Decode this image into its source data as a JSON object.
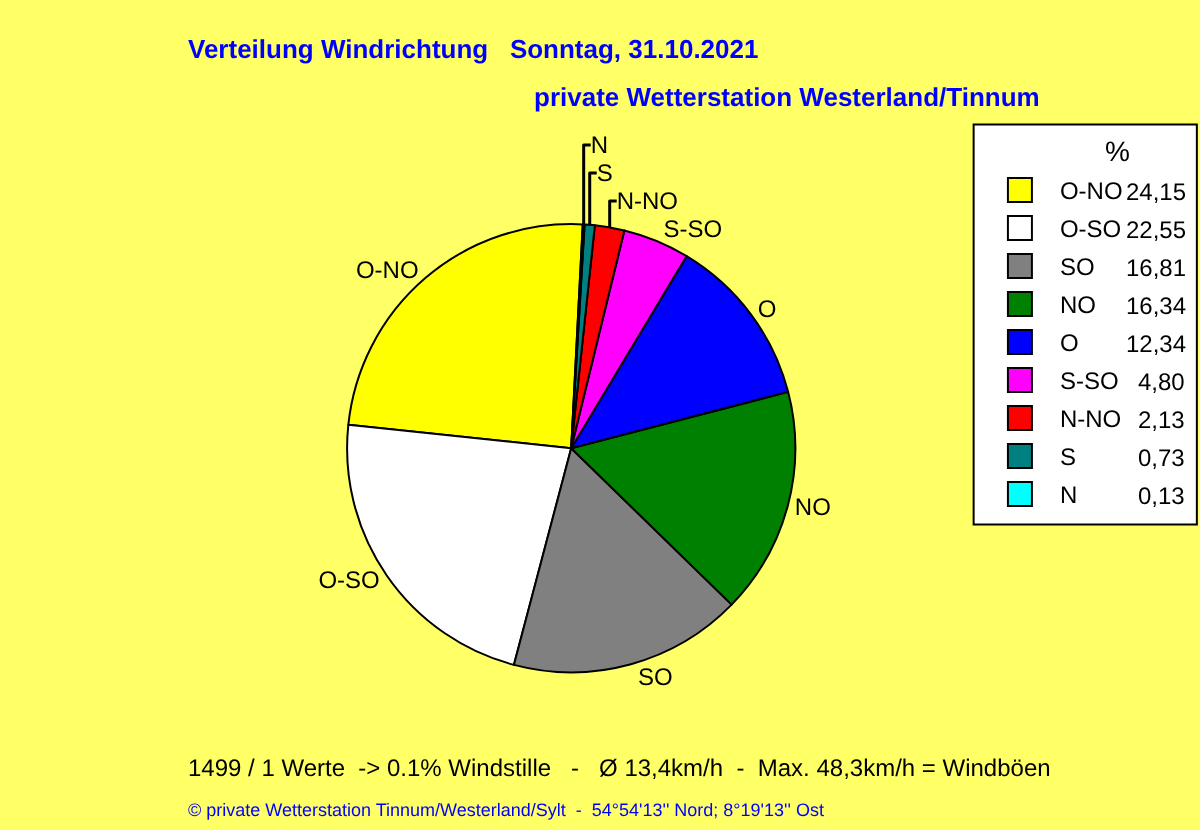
{
  "chart_data": {
    "type": "pie",
    "title": "Verteilung Windrichtung   Sonntag, 31.10.2021",
    "subtitle": "private Wetterstation Westerland/Tinnum",
    "legend_title": "%",
    "categories": [
      "O-NO",
      "O-SO",
      "SO",
      "NO",
      "O",
      "S-SO",
      "N-NO",
      "S",
      "N"
    ],
    "values": [
      24.15,
      22.55,
      16.81,
      16.34,
      12.34,
      4.8,
      2.13,
      0.73,
      0.13
    ],
    "value_labels": [
      "24,15",
      "22,55",
      "16,81",
      "16,34",
      "12,34",
      "4,80",
      "2,13",
      "0,73",
      "0,13"
    ],
    "colors": [
      "#ffff00",
      "#ffffff",
      "#808080",
      "#008000",
      "#0000ff",
      "#ff00ff",
      "#ff0000",
      "#008080",
      "#00ffff"
    ],
    "legend": "top right",
    "annotations": [
      "1499 / 1 Werte  -> 0.1% Windstille   -   Ø 13,4km/h  -  Max. 48,3km/h = Windböen",
      "© private Wetterstation Tinnum/Westerland/Sylt  -  54°54'13'' Nord; 8°19'13'' Ost"
    ]
  }
}
